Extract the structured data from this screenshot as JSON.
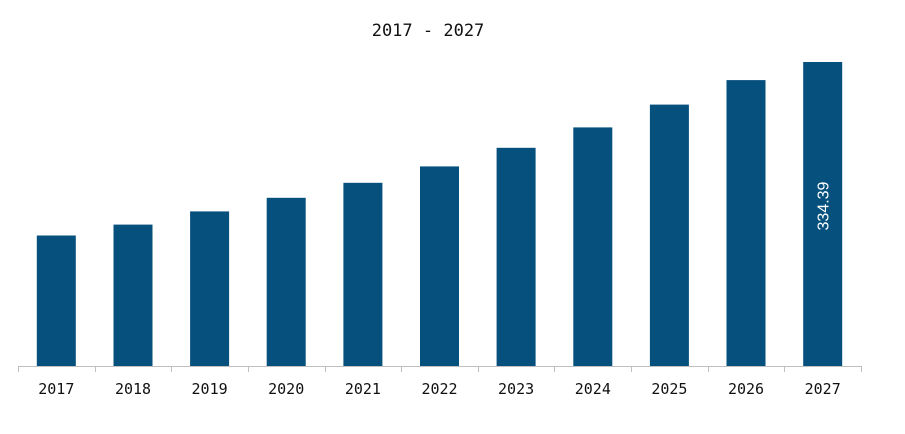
{
  "colors": {
    "bar": "#05507d",
    "axis": "#bfbfbf",
    "text": "#111111",
    "label": "#ffffff"
  },
  "chart_data": {
    "type": "bar",
    "title": "2017 - 2027",
    "xlabel": "",
    "ylabel": "",
    "categories": [
      "2017",
      "2018",
      "2019",
      "2020",
      "2021",
      "2022",
      "2023",
      "2024",
      "2025",
      "2026",
      "2027"
    ],
    "values": [
      143.5,
      155.5,
      170.0,
      185.0,
      201.5,
      219.5,
      240.0,
      262.5,
      287.5,
      314.5,
      334.39
    ],
    "data_labels": [
      {
        "index": 10,
        "text": "334.39"
      }
    ],
    "ylim": [
      0,
      334.39
    ],
    "grid": false,
    "legend": "none"
  }
}
